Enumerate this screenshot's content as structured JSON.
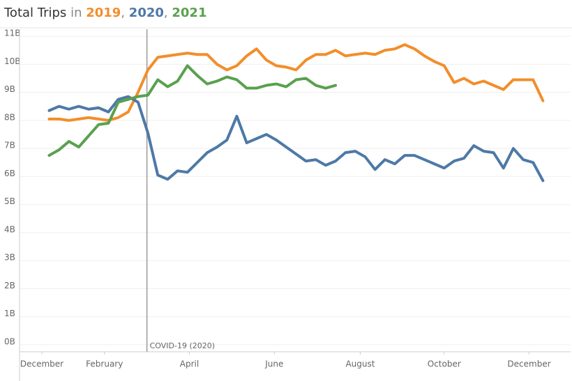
{
  "chart_data": {
    "type": "line",
    "title": "Total Trips",
    "title_connector": "in",
    "title_separator": ",",
    "x": [
      0,
      1,
      2,
      3,
      4,
      5,
      6,
      7,
      8,
      9,
      10,
      11,
      12,
      13,
      14,
      15,
      16,
      17,
      18,
      19,
      20,
      21,
      22,
      23,
      24,
      25,
      26,
      27,
      28,
      29,
      30,
      31,
      32,
      33,
      34,
      35,
      36,
      37,
      38,
      39,
      40,
      41,
      42,
      43,
      44,
      45,
      46,
      47,
      48,
      49,
      50
    ],
    "series": [
      {
        "name": "2019",
        "color": "#f28e2b",
        "values": [
          8.05,
          8.05,
          8.0,
          8.05,
          8.1,
          8.05,
          8.0,
          8.1,
          8.3,
          9.0,
          9.8,
          10.25,
          10.3,
          10.35,
          10.4,
          10.35,
          10.35,
          10.0,
          9.8,
          9.95,
          10.3,
          10.55,
          10.15,
          9.95,
          9.9,
          9.8,
          10.15,
          10.35,
          10.35,
          10.5,
          10.3,
          10.35,
          10.4,
          10.35,
          10.5,
          10.55,
          10.7,
          10.55,
          10.3,
          10.1,
          9.95,
          9.35,
          9.5,
          9.3,
          9.4,
          9.25,
          9.1,
          9.45,
          9.45,
          9.45,
          8.7
        ]
      },
      {
        "name": "2020",
        "color": "#4e79a7",
        "values": [
          8.35,
          8.5,
          8.4,
          8.5,
          8.4,
          8.45,
          8.3,
          8.75,
          8.85,
          8.65,
          7.55,
          6.05,
          5.9,
          6.2,
          6.15,
          6.5,
          6.85,
          7.05,
          7.3,
          8.15,
          7.2,
          7.35,
          7.5,
          7.3,
          7.05,
          6.8,
          6.55,
          6.6,
          6.4,
          6.55,
          6.85,
          6.9,
          6.7,
          6.25,
          6.6,
          6.45,
          6.75,
          6.75,
          6.6,
          6.45,
          6.3,
          6.55,
          6.65,
          7.1,
          6.9,
          6.85,
          6.3,
          7.0,
          6.6,
          6.5,
          5.85
        ]
      },
      {
        "name": "2021",
        "color": "#59a14f",
        "values": [
          6.75,
          6.95,
          7.25,
          7.05,
          7.45,
          7.85,
          7.9,
          8.65,
          8.75,
          8.85,
          8.9,
          9.45,
          9.2,
          9.4,
          9.95,
          9.6,
          9.3,
          9.4,
          9.55,
          9.45,
          9.15,
          9.15,
          9.25,
          9.3,
          9.2,
          9.45,
          9.5,
          9.25,
          9.15,
          9.25,
          null,
          null,
          null,
          null,
          null,
          null,
          null,
          null,
          null,
          null,
          null,
          null,
          null,
          null,
          null,
          null,
          null,
          null,
          null,
          null,
          null
        ]
      }
    ],
    "xlim": [
      -3,
      52.8
    ],
    "xticks": [
      {
        "value": -0.74,
        "label": "December"
      },
      {
        "value": 5.6,
        "label": "February"
      },
      {
        "value": 14.2,
        "label": "April"
      },
      {
        "value": 22.8,
        "label": "June"
      },
      {
        "value": 31.5,
        "label": "August"
      },
      {
        "value": 40.0,
        "label": "October"
      },
      {
        "value": 48.6,
        "label": "December"
      }
    ],
    "ylim": [
      -0.25,
      11.25
    ],
    "yticks": [
      {
        "value": 0,
        "label": "0B"
      },
      {
        "value": 1,
        "label": "1B"
      },
      {
        "value": 2,
        "label": "2B"
      },
      {
        "value": 3,
        "label": "3B"
      },
      {
        "value": 4,
        "label": "4B"
      },
      {
        "value": 5,
        "label": "5B"
      },
      {
        "value": 6,
        "label": "6B"
      },
      {
        "value": 7,
        "label": "7B"
      },
      {
        "value": 8,
        "label": "8B"
      },
      {
        "value": 9,
        "label": "9B"
      },
      {
        "value": 10,
        "label": "10B"
      },
      {
        "value": 11,
        "label": "11B"
      }
    ],
    "grid": true,
    "reference_line": {
      "x": 9.9,
      "label": "COVID-19 (2020)"
    }
  }
}
